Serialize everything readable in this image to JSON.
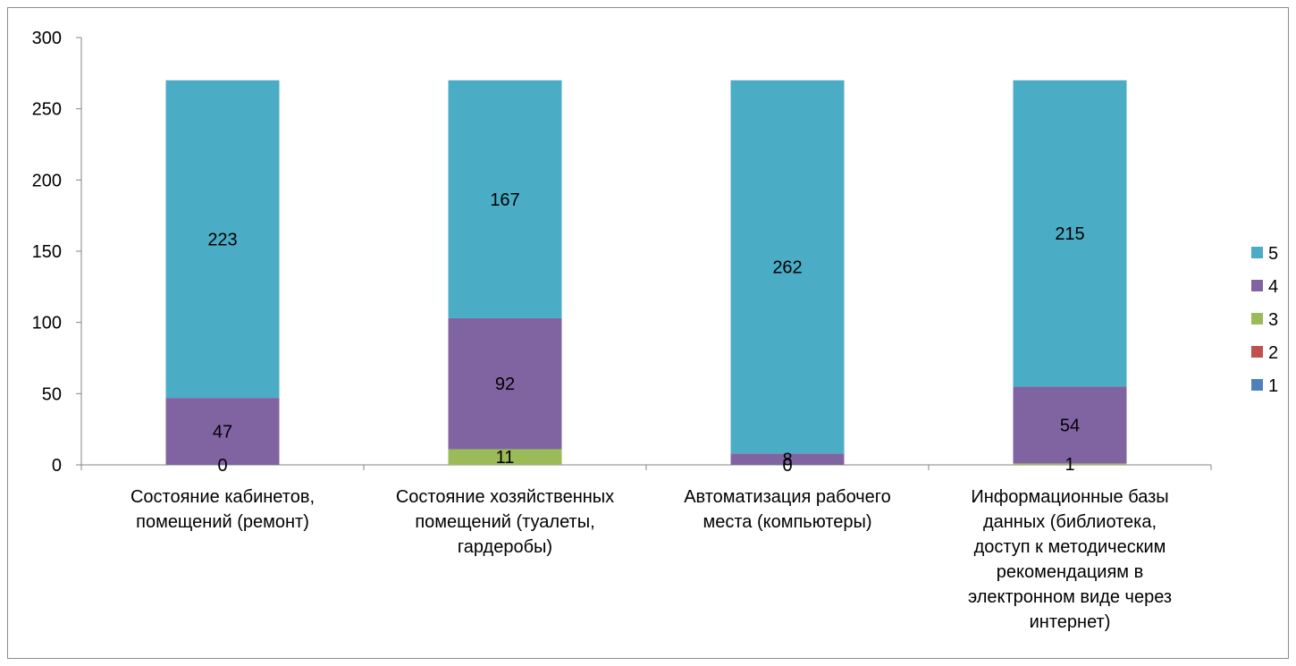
{
  "chart_data": {
    "type": "bar",
    "stacked": true,
    "categories": [
      "Состояние кабинетов, помещений (ремонт)",
      "Состояние хозяйственных помещений (туалеты, гардеробы)",
      "Автоматизация рабочего места (компьютеры)",
      "Информационные базы данных (библиотека, доступ к методическим рекомендациям в электронном виде через интернет)"
    ],
    "category_lines": [
      [
        "Состояние кабинетов,",
        "помещений (ремонт)"
      ],
      [
        "Состояние хозяйственных",
        "помещений (туалеты,",
        "гардеробы)"
      ],
      [
        "Автоматизация рабочего",
        "места (компьютеры)"
      ],
      [
        "Информационные базы",
        "данных (библиотека,",
        "доступ к методическим",
        "рекомендациям в",
        "электронном виде через",
        "интернет)"
      ]
    ],
    "series": [
      {
        "name": "1",
        "color": "#4F81BD",
        "values": [
          0,
          0,
          0,
          0
        ],
        "labels": [
          "",
          "",
          "",
          ""
        ]
      },
      {
        "name": "2",
        "color": "#C0504D",
        "values": [
          0,
          0,
          0,
          0
        ],
        "labels": [
          "",
          "",
          "",
          ""
        ]
      },
      {
        "name": "3",
        "color": "#9BBB59",
        "values": [
          0,
          11,
          0,
          1
        ],
        "labels": [
          "0",
          "11",
          "0",
          "1"
        ]
      },
      {
        "name": "4",
        "color": "#8064A2",
        "values": [
          47,
          92,
          8,
          54
        ],
        "labels": [
          "47",
          "92",
          "8",
          "54"
        ]
      },
      {
        "name": "5",
        "color": "#4BACC6",
        "values": [
          223,
          167,
          262,
          215
        ],
        "labels": [
          "223",
          "167",
          "262",
          "215"
        ]
      }
    ],
    "ylim": [
      0,
      300
    ],
    "yticks": [
      0,
      50,
      100,
      150,
      200,
      250,
      300
    ],
    "grid": false,
    "legend_position": "right",
    "legend_order": [
      "5",
      "4",
      "3",
      "2",
      "1"
    ],
    "title": "",
    "xlabel": "",
    "ylabel": ""
  }
}
